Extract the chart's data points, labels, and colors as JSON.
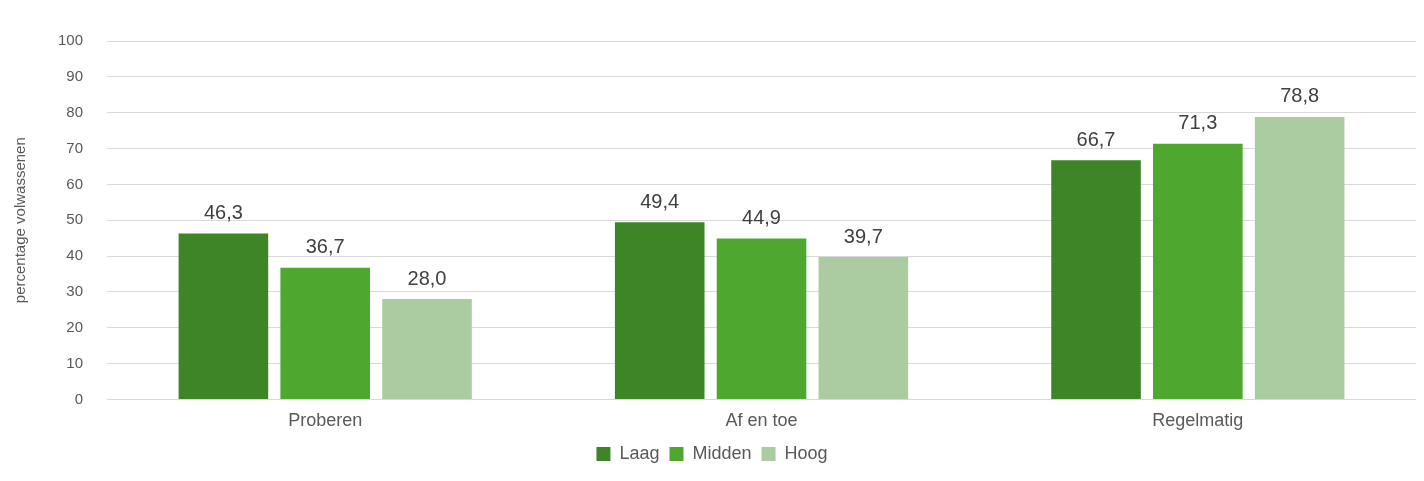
{
  "chart_data": {
    "type": "bar",
    "ylabel": "percentage volwassenen",
    "categories": [
      "Proberen",
      "Af en toe",
      "Regelmatig"
    ],
    "series": [
      {
        "name": "Laag",
        "color": "#3d8527",
        "values": [
          46.3,
          49.4,
          66.7
        ],
        "value_labels": [
          "46,3",
          "49,4",
          "66,7"
        ]
      },
      {
        "name": "Midden",
        "color": "#4ea72e",
        "values": [
          36.7,
          44.9,
          71.3
        ],
        "value_labels": [
          "36,7",
          "44,9",
          "71,3"
        ]
      },
      {
        "name": "Hoog",
        "color": "#aacca0",
        "values": [
          28.0,
          39.7,
          78.8
        ],
        "value_labels": [
          "28,0",
          "39,7",
          "78,8"
        ]
      }
    ],
    "ylim": [
      0,
      100
    ],
    "yticks": [
      0,
      10,
      20,
      30,
      40,
      50,
      60,
      70,
      80,
      90,
      100
    ],
    "grid": "y",
    "legend": "bottom"
  }
}
